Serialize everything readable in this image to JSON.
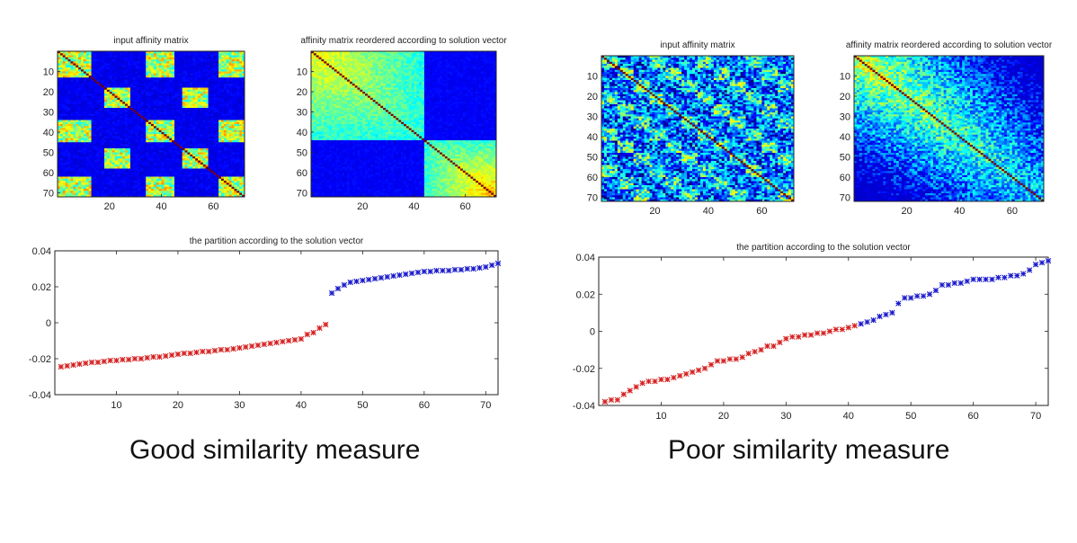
{
  "captions": {
    "good": "Good similarity measure",
    "poor": "Poor similarity measure"
  },
  "colors": {
    "cluster_a": "#d62020",
    "cluster_b": "#1a1acc",
    "matrix_background": "#0a1bb0",
    "axis": "#222222"
  },
  "chart_data": [
    {
      "type": "heatmap",
      "panel": "good",
      "title": "input affinity matrix",
      "xlim": [
        0,
        72
      ],
      "ylim": [
        72,
        0
      ],
      "xticks": [
        20,
        40,
        60
      ],
      "yticks": [
        10,
        20,
        30,
        40,
        50,
        60,
        70
      ],
      "colormap": "jet",
      "pattern": "interleaved_blocks",
      "cluster_ranges": [
        [
          0,
          13
        ],
        [
          18,
          28
        ],
        [
          34,
          45
        ],
        [
          48,
          58
        ],
        [
          62,
          72
        ]
      ]
    },
    {
      "type": "heatmap",
      "panel": "good",
      "title": "affinity matrix reordered according to solution vector",
      "xlim": [
        0,
        72
      ],
      "ylim": [
        72,
        0
      ],
      "xticks": [
        20,
        40,
        60
      ],
      "yticks": [
        10,
        20,
        30,
        40,
        50,
        60,
        70
      ],
      "colormap": "jet",
      "pattern": "two_diagonal_blocks",
      "block_split": 44
    },
    {
      "type": "scatter",
      "panel": "good",
      "title": "the partition according to the solution vector",
      "xlim": [
        0,
        72
      ],
      "ylim": [
        -0.04,
        0.04
      ],
      "xticks": [
        10,
        20,
        30,
        40,
        50,
        60,
        70
      ],
      "yticks": [
        0.04,
        0.02,
        0,
        -0.02,
        -0.04
      ],
      "ytick_labels": [
        "0.04",
        "0.02",
        "0",
        "-0.02",
        "-0.04"
      ],
      "series": [
        {
          "color_key": "cluster_a",
          "x": [
            1,
            2,
            3,
            4,
            5,
            6,
            7,
            8,
            9,
            10,
            11,
            12,
            13,
            14,
            15,
            16,
            17,
            18,
            19,
            20,
            21,
            22,
            23,
            24,
            25,
            26,
            27,
            28,
            29,
            30,
            31,
            32,
            33,
            34,
            35,
            36,
            37,
            38,
            39,
            40,
            41,
            42,
            43,
            44
          ],
          "values": [
            -0.0245,
            -0.024,
            -0.0235,
            -0.023,
            -0.0225,
            -0.022,
            -0.022,
            -0.0215,
            -0.021,
            -0.021,
            -0.0205,
            -0.0205,
            -0.02,
            -0.02,
            -0.0195,
            -0.019,
            -0.019,
            -0.0185,
            -0.018,
            -0.0175,
            -0.017,
            -0.017,
            -0.0165,
            -0.016,
            -0.016,
            -0.0155,
            -0.015,
            -0.015,
            -0.0145,
            -0.014,
            -0.0135,
            -0.013,
            -0.0125,
            -0.012,
            -0.0115,
            -0.011,
            -0.0105,
            -0.01,
            -0.0095,
            -0.009,
            -0.0065,
            -0.0055,
            -0.003,
            -0.001
          ]
        },
        {
          "color_key": "cluster_b",
          "x": [
            45,
            46,
            47,
            48,
            49,
            50,
            51,
            52,
            53,
            54,
            55,
            56,
            57,
            58,
            59,
            60,
            61,
            62,
            63,
            64,
            65,
            66,
            67,
            68,
            69,
            70,
            71,
            72
          ],
          "values": [
            0.0165,
            0.019,
            0.021,
            0.0225,
            0.023,
            0.0235,
            0.024,
            0.0245,
            0.025,
            0.0255,
            0.026,
            0.0265,
            0.027,
            0.0275,
            0.028,
            0.0285,
            0.0285,
            0.029,
            0.029,
            0.029,
            0.0295,
            0.0295,
            0.03,
            0.03,
            0.0305,
            0.031,
            0.032,
            0.033
          ]
        }
      ]
    },
    {
      "type": "heatmap",
      "panel": "poor",
      "title": "input affinity matrix",
      "xlim": [
        0,
        72
      ],
      "ylim": [
        72,
        0
      ],
      "xticks": [
        20,
        40,
        60
      ],
      "yticks": [
        10,
        20,
        30,
        40,
        50,
        60,
        70
      ],
      "colormap": "jet",
      "pattern": "noisy"
    },
    {
      "type": "heatmap",
      "panel": "poor",
      "title": "affinity matrix reordered according to solution vector",
      "xlim": [
        0,
        72
      ],
      "ylim": [
        72,
        0
      ],
      "xticks": [
        20,
        40,
        60
      ],
      "yticks": [
        10,
        20,
        30,
        40,
        50,
        60,
        70
      ],
      "colormap": "jet",
      "pattern": "gradient_noisy"
    },
    {
      "type": "scatter",
      "panel": "poor",
      "title": "the partition according to the solution vector",
      "xlim": [
        0,
        72
      ],
      "ylim": [
        -0.04,
        0.04
      ],
      "xticks": [
        10,
        20,
        30,
        40,
        50,
        60,
        70
      ],
      "yticks": [
        0.04,
        0.02,
        0,
        -0.02,
        -0.04
      ],
      "ytick_labels": [
        "0.04",
        "0.02",
        "0",
        "-0.02",
        "-0.04"
      ],
      "series": [
        {
          "color_key": "cluster_a",
          "x": [
            1,
            2,
            3,
            4,
            5,
            6,
            7,
            8,
            9,
            10,
            11,
            12,
            13,
            14,
            15,
            16,
            17,
            18,
            19,
            20,
            21,
            22,
            23,
            24,
            25,
            26,
            27,
            28,
            29,
            30,
            31,
            32,
            33,
            34,
            35,
            36,
            37,
            38,
            39,
            40,
            41
          ],
          "values": [
            -0.038,
            -0.037,
            -0.037,
            -0.034,
            -0.032,
            -0.03,
            -0.028,
            -0.027,
            -0.027,
            -0.026,
            -0.026,
            -0.025,
            -0.024,
            -0.023,
            -0.022,
            -0.021,
            -0.02,
            -0.018,
            -0.016,
            -0.016,
            -0.015,
            -0.015,
            -0.014,
            -0.012,
            -0.011,
            -0.01,
            -0.008,
            -0.008,
            -0.006,
            -0.004,
            -0.003,
            -0.003,
            -0.002,
            -0.002,
            -0.001,
            -0.001,
            0,
            0.001,
            0.001,
            0.002,
            0.003
          ]
        },
        {
          "color_key": "cluster_b",
          "x": [
            42,
            43,
            44,
            45,
            46,
            47,
            48,
            49,
            50,
            51,
            52,
            53,
            54,
            55,
            56,
            57,
            58,
            59,
            60,
            61,
            62,
            63,
            64,
            65,
            66,
            67,
            68,
            69,
            70,
            71,
            72
          ],
          "values": [
            0.004,
            0.005,
            0.006,
            0.008,
            0.009,
            0.01,
            0.015,
            0.018,
            0.018,
            0.019,
            0.019,
            0.02,
            0.022,
            0.025,
            0.025,
            0.026,
            0.026,
            0.027,
            0.028,
            0.028,
            0.028,
            0.028,
            0.029,
            0.029,
            0.03,
            0.03,
            0.031,
            0.033,
            0.036,
            0.037,
            0.038
          ]
        }
      ]
    }
  ]
}
